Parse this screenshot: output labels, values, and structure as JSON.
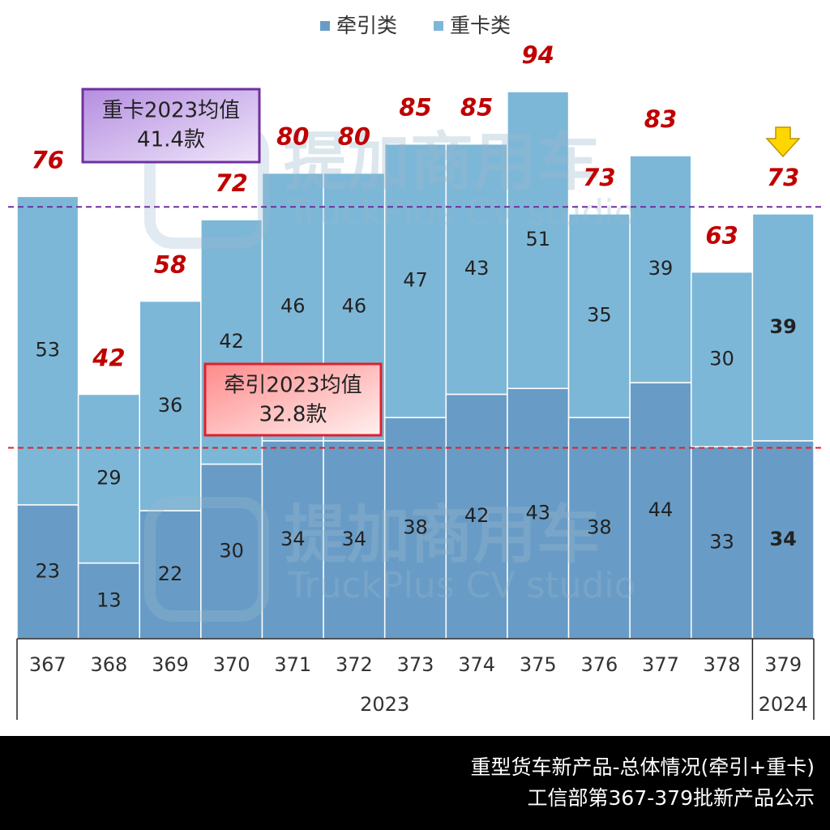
{
  "chart_data": {
    "type": "stacked_bar",
    "categories": [
      "367",
      "368",
      "369",
      "370",
      "371",
      "372",
      "373",
      "374",
      "375",
      "376",
      "377",
      "378",
      "379"
    ],
    "groups": [
      {
        "label": "2023",
        "count": 12
      },
      {
        "label": "2024",
        "count": 1
      }
    ],
    "series": [
      {
        "name": "牵引类",
        "color": "#689cc6",
        "values": [
          23,
          13,
          22,
          30,
          34,
          34,
          38,
          42,
          43,
          38,
          44,
          33,
          34
        ]
      },
      {
        "name": "重卡类",
        "color": "#7db7d7",
        "values": [
          53,
          29,
          36,
          42,
          46,
          46,
          47,
          43,
          51,
          35,
          39,
          30,
          39
        ]
      }
    ],
    "totals": [
      76,
      42,
      58,
      72,
      80,
      80,
      85,
      85,
      94,
      73,
      83,
      63,
      73
    ],
    "ylim": [
      0,
      100
    ],
    "legend": "top",
    "reference_lines": [
      {
        "series": 0,
        "label": "牵引2023均值",
        "value": 32.8,
        "value_label": "32.8款",
        "color": "#e0202a"
      },
      {
        "series": 1,
        "label": "重卡2023均值",
        "value": 41.4,
        "value_label": "41.4款",
        "color": "#7030a0"
      }
    ],
    "watermark": {
      "title": "提加商用车",
      "subtitle": "TruckPlus CV studio"
    },
    "footer": [
      "重型货车新产品-总体情况(牵引+重卡)",
      "工信部第367-379批新产品公示"
    ]
  }
}
